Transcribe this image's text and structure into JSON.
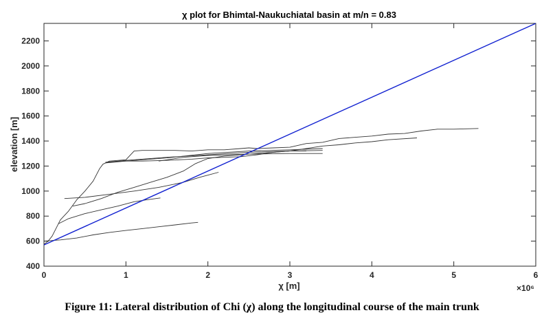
{
  "chart_data": {
    "type": "line",
    "title": "χ plot for Bhimtal-Naukuchiatal basin at m/n = 0.83",
    "xlabel": "χ [m]",
    "ylabel": "elevation [m]",
    "x_exponent_label": "×10⁶",
    "xlim": [
      0,
      6
    ],
    "ylim": [
      400,
      2340
    ],
    "x_ticks": [
      0,
      1,
      2,
      3,
      4,
      5,
      6
    ],
    "y_ticks": [
      400,
      600,
      800,
      1000,
      1200,
      1400,
      1600,
      1800,
      2000,
      2200
    ],
    "grid": false,
    "colors": {
      "streams": "#333333",
      "trend": "#1020d0",
      "axes": "#262626"
    },
    "series": [
      {
        "kind": "stream",
        "x": [
          0,
          0.05,
          0.1,
          0.2,
          0.3,
          0.4,
          0.5,
          0.6,
          0.68,
          0.72,
          0.8,
          1.0,
          1.1,
          1.2,
          1.4,
          1.6,
          1.8,
          2.0,
          2.2,
          2.4,
          2.5,
          2.6,
          2.8,
          3.0,
          3.2,
          3.4,
          3.6,
          3.8,
          4.0,
          4.2,
          4.4,
          4.6,
          4.8,
          5.0,
          5.3
        ],
        "y": [
          575,
          600,
          640,
          770,
          840,
          930,
          1000,
          1080,
          1180,
          1215,
          1240,
          1250,
          1320,
          1325,
          1325,
          1325,
          1320,
          1330,
          1330,
          1340,
          1345,
          1340,
          1345,
          1350,
          1380,
          1390,
          1420,
          1430,
          1440,
          1455,
          1460,
          1480,
          1495,
          1495,
          1500
        ]
      },
      {
        "kind": "stream",
        "x": [
          0.75,
          1.0,
          1.2,
          1.5,
          1.8,
          2.0,
          2.2,
          2.4,
          2.6,
          2.8,
          3.0,
          3.2,
          3.4,
          3.6,
          3.8,
          4.0,
          4.2,
          4.55
        ],
        "y": [
          1225,
          1240,
          1240,
          1245,
          1255,
          1265,
          1270,
          1275,
          1290,
          1310,
          1320,
          1340,
          1360,
          1370,
          1385,
          1395,
          1410,
          1425
        ]
      },
      {
        "kind": "stream",
        "x": [
          0.75,
          1.0,
          1.5,
          2.0,
          2.5,
          3.0,
          3.4
        ],
        "y": [
          1230,
          1240,
          1265,
          1300,
          1320,
          1330,
          1340
        ]
      },
      {
        "kind": "stream",
        "x": [
          0.75,
          1.0,
          1.5,
          2.0,
          2.5,
          3.0,
          3.4
        ],
        "y": [
          1230,
          1245,
          1270,
          1290,
          1310,
          1320,
          1325
        ]
      },
      {
        "kind": "stream",
        "x": [
          1.4,
          1.7,
          2.0,
          2.5,
          3.0,
          3.4
        ],
        "y": [
          1240,
          1270,
          1285,
          1295,
          1300,
          1300
        ]
      },
      {
        "kind": "stream",
        "x": [
          0.35,
          0.5,
          0.7,
          0.9,
          1.1,
          1.3,
          1.5,
          1.7,
          1.85,
          2.0,
          2.2,
          2.4,
          2.6,
          2.8,
          3.0,
          3.2
        ],
        "y": [
          880,
          900,
          940,
          990,
          1030,
          1070,
          1110,
          1160,
          1220,
          1260,
          1280,
          1290,
          1300,
          1310,
          1320,
          1320
        ]
      },
      {
        "kind": "stream",
        "x": [
          0.25,
          0.5,
          0.8,
          1.1,
          1.4,
          1.7,
          1.9,
          2.13
        ],
        "y": [
          940,
          950,
          975,
          1000,
          1030,
          1070,
          1110,
          1150
        ]
      },
      {
        "kind": "stream",
        "x": [
          0.18,
          0.3,
          0.5,
          0.7,
          0.9,
          1.1,
          1.25,
          1.42
        ],
        "y": [
          740,
          780,
          820,
          850,
          880,
          915,
          930,
          945
        ]
      },
      {
        "kind": "stream",
        "x": [
          0,
          0.2,
          0.4,
          0.6,
          0.8,
          1.0,
          1.2,
          1.4,
          1.6,
          1.8,
          1.88
        ],
        "y": [
          600,
          610,
          625,
          650,
          670,
          685,
          700,
          715,
          730,
          745,
          750
        ]
      },
      {
        "kind": "trend",
        "x": [
          0,
          6
        ],
        "y": [
          570,
          2340
        ]
      }
    ]
  },
  "caption": "Figure 11: Lateral distribution of Chi (χ) along the longitudinal course of the main trunk"
}
